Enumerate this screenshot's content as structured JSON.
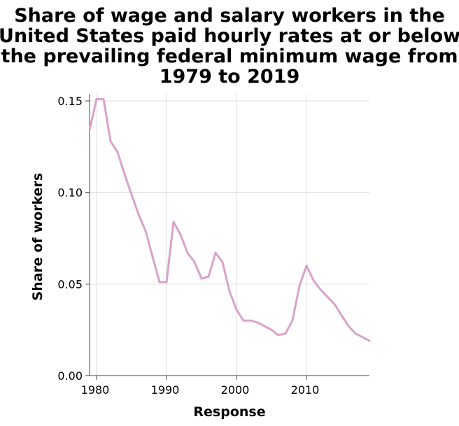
{
  "chart_data": {
    "type": "line",
    "title": [
      "Share of wage and salary workers in the",
      "United States paid hourly rates at or below",
      "the prevailing federal minimum wage from",
      "1979 to 2019"
    ],
    "xlabel": "Response",
    "ylabel": "Share of workers",
    "xlim": [
      1979,
      2019
    ],
    "ylim": [
      0,
      0.15
    ],
    "xticks": [
      1980,
      1990,
      2000,
      2010
    ],
    "xtick_labels": [
      "1980",
      "1990",
      "2000",
      "2010"
    ],
    "yticks": [
      0,
      0.05,
      0.1,
      0.15
    ],
    "ytick_labels": [
      "0.00",
      "0.05",
      "0.10",
      "0.15"
    ],
    "grid": true,
    "line_color": "#d8a2cc",
    "series": [
      {
        "x": [
          1979,
          1980,
          1981,
          1982,
          1983,
          1984,
          1985,
          1986,
          1987,
          1988,
          1989,
          1990,
          1991,
          1992,
          1993,
          1994,
          1995,
          1996,
          1997,
          1998,
          1999,
          2000,
          2001,
          2002,
          2003,
          2004,
          2005,
          2006,
          2007,
          2008,
          2009,
          2010,
          2011,
          2012,
          2013,
          2014,
          2015,
          2016,
          2017,
          2018,
          2019
        ],
        "values": [
          0.134,
          0.151,
          0.151,
          0.128,
          0.122,
          0.11,
          0.099,
          0.088,
          0.079,
          0.065,
          0.051,
          0.051,
          0.084,
          0.077,
          0.067,
          0.062,
          0.053,
          0.054,
          0.067,
          0.062,
          0.046,
          0.036,
          0.03,
          0.03,
          0.029,
          0.027,
          0.025,
          0.022,
          0.023,
          0.03,
          0.049,
          0.06,
          0.052,
          0.047,
          0.043,
          0.039,
          0.033,
          0.027,
          0.023,
          0.021,
          0.019
        ]
      }
    ]
  }
}
